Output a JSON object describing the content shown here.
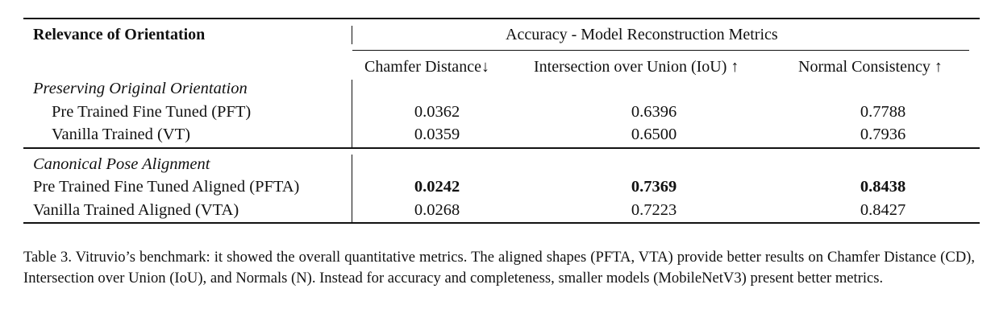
{
  "table": {
    "corner_header": "Relevance of Orientation",
    "group_header": "Accuracy - Model Reconstruction Metrics",
    "columns": [
      "Chamfer Distance↓",
      "Intersection over Union (IoU) ↑",
      "Normal Consistency ↑"
    ],
    "sections": [
      {
        "title": "Preserving Original Orientation",
        "rows": [
          {
            "label": "Pre Trained Fine Tuned (PFT)",
            "values": [
              "0.0362",
              "0.6396",
              "0.7788"
            ],
            "bold": false
          },
          {
            "label": "Vanilla Trained (VT)",
            "values": [
              "0.0359",
              "0.6500",
              "0.7936"
            ],
            "bold": false
          }
        ]
      },
      {
        "title": "Canonical Pose Alignment",
        "rows": [
          {
            "label": "Pre Trained Fine Tuned Aligned (PFTA)",
            "values": [
              "0.0242",
              "0.7369",
              "0.8438"
            ],
            "bold": true
          },
          {
            "label": "Vanilla Trained Aligned (VTA)",
            "values": [
              "0.0268",
              "0.7223",
              "0.8427"
            ],
            "bold": false
          }
        ]
      }
    ]
  },
  "caption": "Table 3. Vitruvio’s benchmark: it showed the overall quantitative metrics. The aligned shapes (PFTA, VTA) provide better results on Chamfer Distance (CD), Intersection over Union (IoU), and Normals (N). Instead for accuracy and completeness, smaller models (MobileNetV3) present better metrics."
}
